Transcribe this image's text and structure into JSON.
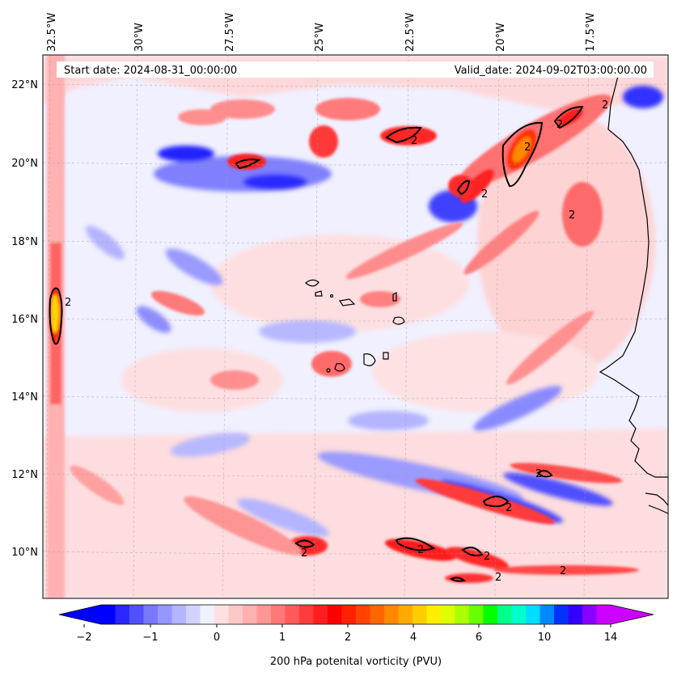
{
  "header": {
    "start_date": "Start date: 2024-08-31_00:00:00",
    "valid_date": "Valid_date: 2024-09-02T03:00:00.00"
  },
  "lon_labels": [
    "32.5°W",
    "30°W",
    "27.5°W",
    "25°W",
    "22.5°W",
    "20°W",
    "17.5°W"
  ],
  "lat_labels": [
    "22°N",
    "20°N",
    "18°N",
    "16°N",
    "14°N",
    "12°N",
    "10°N"
  ],
  "contour_labels": [
    "2",
    "2",
    "2",
    "2",
    "2",
    "2",
    "2",
    "2",
    "2",
    "2",
    "2",
    "2",
    "2",
    "2"
  ],
  "colorbar": {
    "label": "200 hPa potenital vorticity (PVU)",
    "tick_labels": [
      "−2",
      "−1",
      "0",
      "1",
      "2",
      "4",
      "6",
      "10",
      "14"
    ],
    "colors": [
      "#0000ff",
      "#2828ff",
      "#5050ff",
      "#7878ff",
      "#9696ff",
      "#b4b4ff",
      "#d2d2ff",
      "#f0f0ff",
      "#ffe0e0",
      "#ffc8c8",
      "#ffb0b0",
      "#ff9696",
      "#ff7878",
      "#ff5a5a",
      "#ff3c3c",
      "#ff1e1e",
      "#ff0000",
      "#ff2200",
      "#ff4400",
      "#ff6600",
      "#ff8800",
      "#ffaa00",
      "#ffcc00",
      "#ffee00",
      "#ddff00",
      "#aaff00",
      "#66ff00",
      "#00ff00",
      "#00ff88",
      "#00ffcc",
      "#00ddff",
      "#0088ff",
      "#0033ff",
      "#3300ff",
      "#8800ff",
      "#cc00ff"
    ],
    "extend_low_color": "#0000ff",
    "extend_high_color": "#cc00ff"
  },
  "colors": {
    "background": "#f0f0ff",
    "contour": "#000000",
    "coastline": "#000000"
  }
}
